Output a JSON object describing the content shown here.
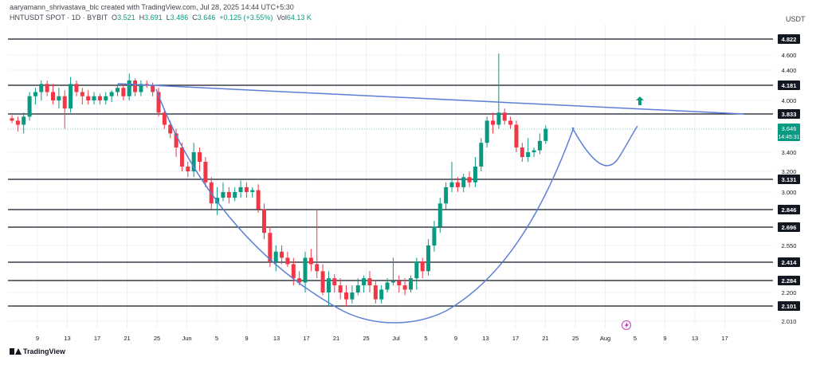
{
  "header": {
    "credit": "aaryamann_shrivastava_blc created with TradingView.com, Jul 28, 2025 14:44 UTC+5:30",
    "symbol_line": "HNTUSDT SPOT · 1D · BYBIT",
    "ohlc": {
      "o_label": "O",
      "o": "3.521",
      "h_label": "H",
      "h": "3.691",
      "l_label": "L",
      "l": "3.486",
      "c_label": "C",
      "c": "3.646",
      "chg": "+0.125 (+3.55%)",
      "vol_label": "Vol",
      "vol": "64.13 K"
    }
  },
  "currency": "USDT",
  "brand": "TradingView",
  "colors": {
    "up": "#089981",
    "down": "#f23645",
    "trend": "#5b7fd6",
    "level": "#131722",
    "arrow": "#089981"
  },
  "chart_data": {
    "type": "candlestick",
    "y_axis_ticks": [
      "4.600",
      "4.400",
      "4.000",
      "3.400",
      "3.200",
      "3.000",
      "2.550",
      "2.200",
      "2.010"
    ],
    "x_axis_ticks": [
      "9",
      "13",
      "17",
      "21",
      "25",
      "Jun",
      "5",
      "9",
      "13",
      "17",
      "21",
      "25",
      "Jul",
      "5",
      "9",
      "13",
      "17",
      "21",
      "25",
      "Aug",
      "5",
      "9",
      "13",
      "17"
    ],
    "horizontal_levels": [
      "4.822",
      "4.181",
      "3.833",
      "3.131",
      "2.846",
      "2.696",
      "2.414",
      "2.284",
      "2.101"
    ],
    "current_price": "3.646",
    "countdown": "14:45:31",
    "candles": [
      [
        3.78,
        3.82,
        3.72,
        3.75
      ],
      [
        3.75,
        3.8,
        3.62,
        3.7
      ],
      [
        3.7,
        3.85,
        3.6,
        3.8
      ],
      [
        3.8,
        4.1,
        3.75,
        4.05
      ],
      [
        4.05,
        4.15,
        3.95,
        4.1
      ],
      [
        4.1,
        4.25,
        4.0,
        4.2
      ],
      [
        4.2,
        4.25,
        4.05,
        4.1
      ],
      [
        4.1,
        4.2,
        3.95,
        4.0
      ],
      [
        4.0,
        4.15,
        3.9,
        4.05
      ],
      [
        4.05,
        4.12,
        3.65,
        3.9
      ],
      [
        3.9,
        4.3,
        3.85,
        4.2
      ],
      [
        4.2,
        4.25,
        4.05,
        4.1
      ],
      [
        4.1,
        4.15,
        3.95,
        4.05
      ],
      [
        4.05,
        4.12,
        3.95,
        4.0
      ],
      [
        4.0,
        4.1,
        3.95,
        4.05
      ],
      [
        4.05,
        4.08,
        3.95,
        4.0
      ],
      [
        4.0,
        4.1,
        3.95,
        4.05
      ],
      [
        4.05,
        4.12,
        3.98,
        4.1
      ],
      [
        4.1,
        4.2,
        4.05,
        4.15
      ],
      [
        4.15,
        4.2,
        4.0,
        4.05
      ],
      [
        4.05,
        4.35,
        4.0,
        4.25
      ],
      [
        4.25,
        4.28,
        4.05,
        4.1
      ],
      [
        4.1,
        4.25,
        4.05,
        4.2
      ],
      [
        4.2,
        4.25,
        4.15,
        4.18
      ],
      [
        4.18,
        4.22,
        4.05,
        4.1
      ],
      [
        4.1,
        4.15,
        3.8,
        3.85
      ],
      [
        3.85,
        3.9,
        3.65,
        3.7
      ],
      [
        3.7,
        3.75,
        3.55,
        3.6
      ],
      [
        3.6,
        3.65,
        3.35,
        3.45
      ],
      [
        3.45,
        3.5,
        3.2,
        3.25
      ],
      [
        3.25,
        3.3,
        3.15,
        3.2
      ],
      [
        3.2,
        3.5,
        3.15,
        3.4
      ],
      [
        3.4,
        3.45,
        3.2,
        3.3
      ],
      [
        3.3,
        3.35,
        3.05,
        3.1
      ],
      [
        3.1,
        3.15,
        2.85,
        2.9
      ],
      [
        2.9,
        3.05,
        2.8,
        2.95
      ],
      [
        2.95,
        3.1,
        2.92,
        3.0
      ],
      [
        3.0,
        3.05,
        2.9,
        2.95
      ],
      [
        2.95,
        3.05,
        2.92,
        3.0
      ],
      [
        3.0,
        3.12,
        2.95,
        3.05
      ],
      [
        3.05,
        3.1,
        2.95,
        3.0
      ],
      [
        3.0,
        3.05,
        2.95,
        3.02
      ],
      [
        3.02,
        3.08,
        2.82,
        2.85
      ],
      [
        2.85,
        2.9,
        2.6,
        2.65
      ],
      [
        2.65,
        2.7,
        2.38,
        2.42
      ],
      [
        2.42,
        2.55,
        2.35,
        2.5
      ],
      [
        2.5,
        2.55,
        2.4,
        2.45
      ],
      [
        2.45,
        2.5,
        2.38,
        2.4
      ],
      [
        2.4,
        2.45,
        2.25,
        2.3
      ],
      [
        2.3,
        2.35,
        2.25,
        2.27
      ],
      [
        2.27,
        2.5,
        2.2,
        2.45
      ],
      [
        2.45,
        2.52,
        2.35,
        2.4
      ],
      [
        2.4,
        2.85,
        2.3,
        2.35
      ],
      [
        2.35,
        2.4,
        2.18,
        2.2
      ],
      [
        2.2,
        2.35,
        2.1,
        2.3
      ],
      [
        2.3,
        2.33,
        2.2,
        2.25
      ],
      [
        2.25,
        2.3,
        2.15,
        2.2
      ],
      [
        2.2,
        2.25,
        2.1,
        2.15
      ],
      [
        2.15,
        2.25,
        2.12,
        2.2
      ],
      [
        2.2,
        2.3,
        2.18,
        2.25
      ],
      [
        2.25,
        2.32,
        2.2,
        2.3
      ],
      [
        2.3,
        2.35,
        2.2,
        2.25
      ],
      [
        2.25,
        2.28,
        2.12,
        2.15
      ],
      [
        2.15,
        2.25,
        2.12,
        2.22
      ],
      [
        2.22,
        2.3,
        2.2,
        2.27
      ],
      [
        2.27,
        2.45,
        2.25,
        2.28
      ],
      [
        2.28,
        2.32,
        2.2,
        2.25
      ],
      [
        2.25,
        2.3,
        2.18,
        2.22
      ],
      [
        2.22,
        2.32,
        2.2,
        2.3
      ],
      [
        2.3,
        2.45,
        2.22,
        2.42
      ],
      [
        2.42,
        2.45,
        2.3,
        2.35
      ],
      [
        2.35,
        2.6,
        2.32,
        2.55
      ],
      [
        2.55,
        2.75,
        2.5,
        2.7
      ],
      [
        2.7,
        2.95,
        2.65,
        2.9
      ],
      [
        2.9,
        3.1,
        2.85,
        3.05
      ],
      [
        3.05,
        3.3,
        3.0,
        3.1
      ],
      [
        3.1,
        3.15,
        3.0,
        3.05
      ],
      [
        3.05,
        3.18,
        3.0,
        3.15
      ],
      [
        3.15,
        3.2,
        3.05,
        3.1
      ],
      [
        3.1,
        3.35,
        3.05,
        3.25
      ],
      [
        3.25,
        3.55,
        3.2,
        3.5
      ],
      [
        3.5,
        3.8,
        3.45,
        3.75
      ],
      [
        3.75,
        3.85,
        3.6,
        3.7
      ],
      [
        3.7,
        4.62,
        3.65,
        3.85
      ],
      [
        3.85,
        3.9,
        3.7,
        3.75
      ],
      [
        3.75,
        3.8,
        3.65,
        3.7
      ],
      [
        3.7,
        3.75,
        3.4,
        3.45
      ],
      [
        3.45,
        3.5,
        3.3,
        3.35
      ],
      [
        3.35,
        3.55,
        3.3,
        3.4
      ],
      [
        3.4,
        3.45,
        3.35,
        3.42
      ],
      [
        3.42,
        3.6,
        3.38,
        3.52
      ],
      [
        3.52,
        3.69,
        3.49,
        3.65
      ]
    ]
  }
}
